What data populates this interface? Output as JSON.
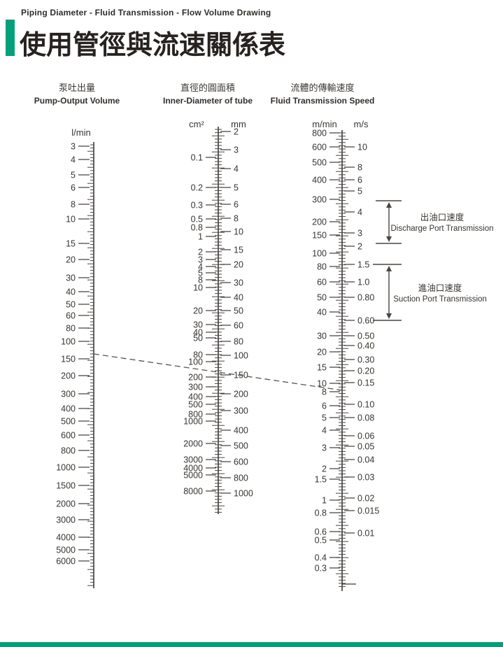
{
  "header": {
    "eyebrow": "Piping Diameter - Fluid Transmission - Flow Volume Drawing",
    "title": "使用管徑與流速關係表"
  },
  "colors": {
    "accent": "#00A07A",
    "ink": "#2E2B29",
    "tick": "#4A4644",
    "dashed_line": "#5A5550"
  },
  "columns": [
    {
      "zh": "泵吐出量",
      "en": "Pump-Output Volume"
    },
    {
      "zh": "直徑的圓面積",
      "en": "Inner-Diameter of tube"
    },
    {
      "zh": "流體的傳輸速度",
      "en": "Fluid Transmission Speed"
    }
  ],
  "chart_data": {
    "type": "nomogram",
    "title": "使用管徑與流速關係表",
    "subtitle": "Piping Diameter - Fluid Transmission - Flow Volume Drawing",
    "scales": [
      {
        "id": "pump-output-volume",
        "unit": "l/min",
        "column": "Pump-Output Volume",
        "scale": "log",
        "labels": [
          "3",
          "4",
          "5",
          "6",
          "8",
          "10",
          "15",
          "20",
          "30",
          "40",
          "50",
          "60",
          "80",
          "100",
          "150",
          "200",
          "300",
          "400",
          "500",
          "600",
          "800",
          "1000",
          "1500",
          "2000",
          "3000",
          "4000",
          "5000",
          "6000"
        ]
      },
      {
        "id": "tube-section-area",
        "unit": "cm²",
        "column": "Inner-Diameter of tube",
        "scale": "log",
        "labels": [
          "0.1",
          "0.2",
          "0.3",
          "0.5",
          "0.8",
          "1",
          "2",
          "3",
          "4",
          "5",
          "8",
          "10",
          "20",
          "30",
          "40",
          "50",
          "80",
          "100",
          "200",
          "300",
          "400",
          "500",
          "800",
          "1000",
          "2000",
          "3000",
          "4000",
          "5000",
          "8000"
        ]
      },
      {
        "id": "tube-bore-diameter",
        "unit": "mm",
        "column": "Inner-Diameter of tube",
        "scale": "log",
        "labels": [
          "2",
          "3",
          "4",
          "5",
          "6",
          "8",
          "10",
          "15",
          "20",
          "30",
          "40",
          "50",
          "60",
          "80",
          "100",
          "150",
          "200",
          "300",
          "400",
          "500",
          "600",
          "800",
          "1000"
        ]
      },
      {
        "id": "speed-m-per-min",
        "unit": "m/min",
        "column": "Fluid Transmission Speed",
        "scale": "log",
        "labels": [
          "800",
          "600",
          "500",
          "400",
          "300",
          "200",
          "150",
          "100",
          "80",
          "60",
          "50",
          "40",
          "30",
          "20",
          "15",
          "10",
          "8",
          "6",
          "5",
          "4",
          "3",
          "2",
          "1.5",
          "1",
          "0.8",
          "0.6",
          "0.5",
          "0.4",
          "0.3"
        ]
      },
      {
        "id": "speed-m-per-s",
        "unit": "m/s",
        "column": "Fluid Transmission Speed",
        "scale": "log",
        "labels": [
          "10",
          "8",
          "6",
          "5",
          "4",
          "3",
          "2",
          "1.5",
          "1.0",
          "0.80",
          "0.60",
          "0.50",
          "0.40",
          "0.30",
          "0.20",
          "0.15",
          "0.10",
          "0.08",
          "0.06",
          "0.05",
          "0.04",
          "0.03",
          "0.02",
          "0.015",
          "0.01"
        ]
      }
    ],
    "annotations": [
      {
        "zh": "出油口速度",
        "en": "Discharge Port Transmission",
        "range_m_per_s": [
          "2",
          "4.7"
        ]
      },
      {
        "zh": "進油口速度",
        "en": "Suction Port Transmission",
        "range_m_per_s": [
          "0.60",
          "1.5"
        ]
      }
    ],
    "reference_line": {
      "style": "dashed",
      "reading": {
        "pump_output_l_min": "≈130",
        "bore_mm": "150",
        "speed_m_min": "≈8.5"
      }
    }
  }
}
